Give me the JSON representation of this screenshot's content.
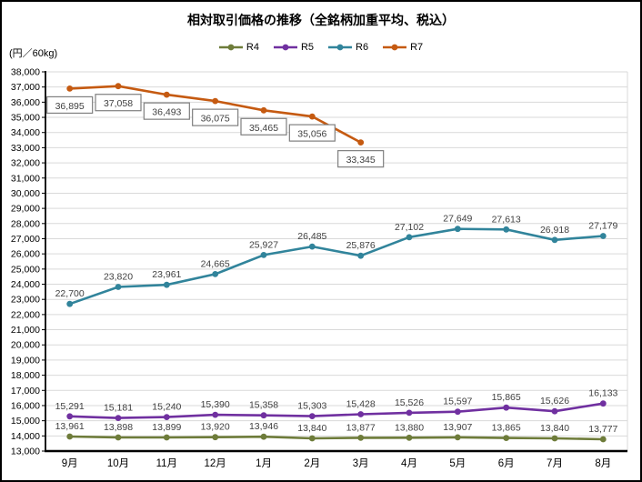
{
  "chart": {
    "title": "相対取引価格の推移（全銘柄加重平均、税込）",
    "unit_label": "(円／60kg)"
  },
  "chart_data": {
    "type": "line",
    "title": "相対取引価格の推移（全銘柄加重平均、税込）",
    "ylabel": "(円／60kg)",
    "xlabel": "",
    "categories": [
      "9月",
      "10月",
      "11月",
      "12月",
      "1月",
      "2月",
      "3月",
      "4月",
      "5月",
      "6月",
      "7月",
      "8月"
    ],
    "ylim": [
      13000,
      38000
    ],
    "ytick_step": 1000,
    "grid": true,
    "legend_position": "top-center",
    "colors": {
      "gridline": "#d9d9d9",
      "axis": "#000000",
      "label_text": "#404040"
    },
    "series": [
      {
        "name": "R4",
        "color": "#6e7c3a",
        "label_position": "above",
        "values": [
          13961,
          13898,
          13899,
          13920,
          13946,
          13840,
          13877,
          13880,
          13907,
          13865,
          13840,
          13777
        ]
      },
      {
        "name": "R5",
        "color": "#7030a0",
        "label_position": "above",
        "values": [
          15291,
          15181,
          15240,
          15390,
          15358,
          15303,
          15428,
          15526,
          15597,
          15865,
          15626,
          16133
        ]
      },
      {
        "name": "R6",
        "color": "#31849b",
        "label_position": "above",
        "values": [
          22700,
          23820,
          23961,
          24665,
          25927,
          26485,
          25876,
          27102,
          27649,
          27613,
          26918,
          27179
        ]
      },
      {
        "name": "R7",
        "color": "#c55a11",
        "label_position": "below-boxed",
        "values": [
          36895,
          37058,
          36493,
          36075,
          35465,
          35056,
          33345
        ]
      }
    ]
  }
}
